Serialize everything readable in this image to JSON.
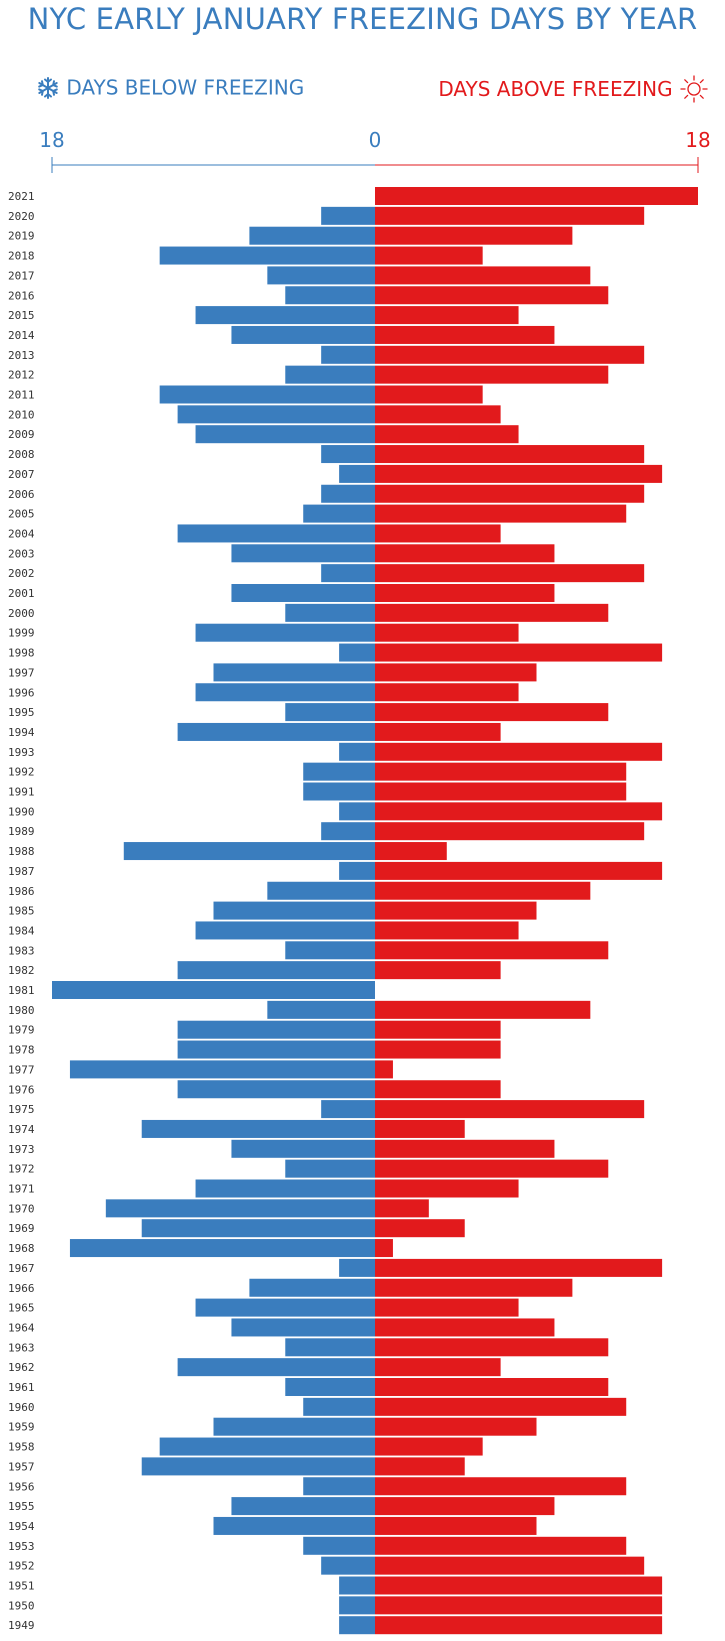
{
  "title": "NYC EARLY JANUARY FREEZING DAYS BY YEAR",
  "legend": {
    "below": {
      "label": "DAYS BELOW FREEZING",
      "icon": "snowflake-icon",
      "color": "#3a7dbe"
    },
    "above": {
      "label": "DAYS ABOVE FREEZING",
      "icon": "sun-icon",
      "color": "#e21a1c"
    }
  },
  "chart_data": {
    "type": "bar",
    "orientation": "horizontal-diverging",
    "title": "NYC EARLY JANUARY FREEZING DAYS BY YEAR",
    "axis_ticks": {
      "left": "18",
      "center": "0",
      "right": "18"
    },
    "xlim": [
      -18,
      18
    ],
    "categories": [
      "2021",
      "2020",
      "2019",
      "2018",
      "2017",
      "2016",
      "2015",
      "2014",
      "2013",
      "2012",
      "2011",
      "2010",
      "2009",
      "2008",
      "2007",
      "2006",
      "2005",
      "2004",
      "2003",
      "2002",
      "2001",
      "2000",
      "1999",
      "1998",
      "1997",
      "1996",
      "1995",
      "1994",
      "1993",
      "1992",
      "1991",
      "1990",
      "1989",
      "1988",
      "1987",
      "1986",
      "1985",
      "1984",
      "1983",
      "1982",
      "1981",
      "1980",
      "1979",
      "1978",
      "1977",
      "1976",
      "1975",
      "1974",
      "1973",
      "1972",
      "1971",
      "1970",
      "1969",
      "1968",
      "1967",
      "1966",
      "1965",
      "1964",
      "1963",
      "1962",
      "1961",
      "1960",
      "1959",
      "1958",
      "1957",
      "1956",
      "1955",
      "1954",
      "1953",
      "1952",
      "1951",
      "1950",
      "1949"
    ],
    "series": [
      {
        "name": "DAYS BELOW FREEZING",
        "color": "#3a7dbe",
        "values": [
          0,
          3,
          7,
          12,
          6,
          5,
          10,
          8,
          3,
          5,
          12,
          11,
          10,
          3,
          2,
          3,
          4,
          11,
          8,
          3,
          8,
          5,
          10,
          2,
          9,
          10,
          5,
          11,
          2,
          4,
          4,
          2,
          3,
          14,
          2,
          6,
          9,
          10,
          5,
          11,
          18,
          6,
          11,
          11,
          17,
          11,
          3,
          13,
          8,
          5,
          10,
          15,
          13,
          17,
          2,
          7,
          10,
          8,
          5,
          11,
          5,
          4,
          9,
          12,
          13,
          4,
          8,
          9,
          4,
          3,
          2,
          2,
          2
        ]
      },
      {
        "name": "DAYS ABOVE FREEZING",
        "color": "#e21a1c",
        "values": [
          18,
          15,
          11,
          6,
          12,
          13,
          8,
          10,
          15,
          13,
          6,
          7,
          8,
          15,
          16,
          15,
          14,
          7,
          10,
          15,
          10,
          13,
          8,
          16,
          9,
          8,
          13,
          7,
          16,
          14,
          14,
          16,
          15,
          4,
          16,
          12,
          9,
          8,
          13,
          7,
          0,
          12,
          7,
          7,
          1,
          7,
          15,
          5,
          10,
          13,
          8,
          3,
          5,
          1,
          16,
          11,
          8,
          10,
          13,
          7,
          13,
          14,
          9,
          6,
          5,
          14,
          10,
          9,
          14,
          15,
          16,
          16,
          16
        ]
      }
    ]
  }
}
